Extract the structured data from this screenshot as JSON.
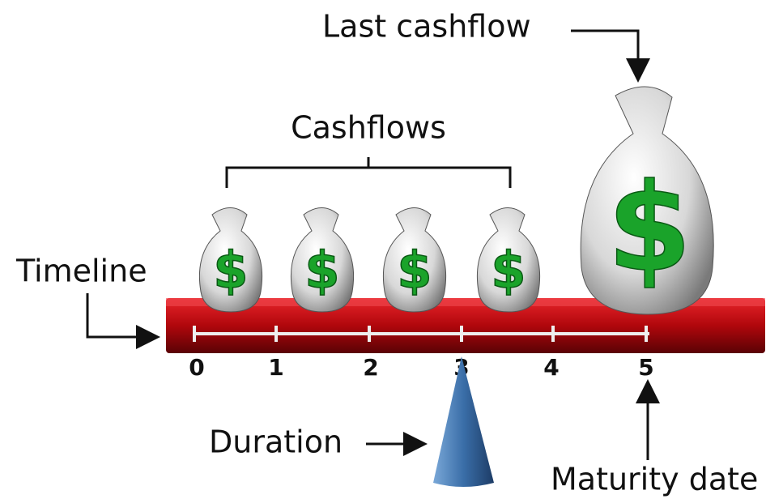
{
  "labels": {
    "last_cashflow": "Last cashflow",
    "cashflows": "Cashflows",
    "timeline": "Timeline",
    "duration": "Duration",
    "maturity_date": "Maturity date"
  },
  "timeline": {
    "ticks": [
      "0",
      "1",
      "2",
      "3",
      "4",
      "5"
    ]
  },
  "bags": [
    {
      "symbol": "$"
    },
    {
      "symbol": "$"
    },
    {
      "symbol": "$"
    },
    {
      "symbol": "$"
    },
    {
      "symbol": "$"
    }
  ]
}
